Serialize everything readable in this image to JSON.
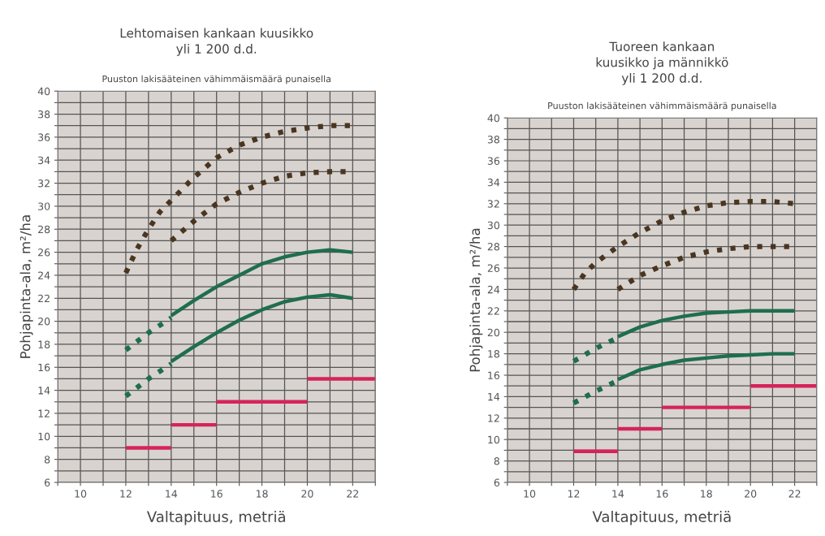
{
  "chart_data": [
    {
      "type": "line",
      "title": "Lehtomaisen kankaan kuusikko\nyli 1 200 d.d.",
      "subtitle": "Puuston lakisääteinen vähimmäismäärä punaisella",
      "xlabel": "Valtapituus, metriä",
      "ylabel": "Pohjapinta-ala, m²/ha",
      "xlim": [
        9,
        23
      ],
      "ylim": [
        6,
        40
      ],
      "xticks": [
        {
          "value": 9,
          "label": null
        },
        10,
        {
          "value": 11,
          "label": null
        },
        12,
        {
          "value": 13,
          "label": null
        },
        14,
        {
          "value": 15,
          "label": null
        },
        16,
        {
          "value": 17,
          "label": null
        },
        18,
        {
          "value": 19,
          "label": null
        },
        20,
        {
          "value": 21,
          "label": null
        },
        22,
        {
          "value": 23,
          "label": null
        }
      ],
      "yticks": [
        6,
        {
          "value": 7,
          "label": null
        },
        8,
        {
          "value": 9,
          "label": null
        },
        10,
        {
          "value": 11,
          "label": null
        },
        12,
        {
          "value": 13,
          "label": null
        },
        14,
        {
          "value": 15,
          "label": null
        },
        16,
        {
          "value": 17,
          "label": null
        },
        18,
        {
          "value": 19,
          "label": null
        },
        20,
        {
          "value": 21,
          "label": null
        },
        22,
        {
          "value": 23,
          "label": null
        },
        24,
        {
          "value": 25,
          "label": null
        },
        26,
        {
          "value": 27,
          "label": null
        },
        28,
        {
          "value": 29,
          "label": null
        },
        30,
        {
          "value": 31,
          "label": null
        },
        32,
        {
          "value": 33,
          "label": null
        },
        34,
        {
          "value": 35,
          "label": null
        },
        36,
        {
          "value": 37,
          "label": null
        },
        38,
        {
          "value": 39,
          "label": null
        },
        40
      ],
      "grid": true,
      "series": [
        {
          "color": "#4a3520",
          "line_style": "dotted",
          "x": [
            12,
            12.5,
            13,
            13.5,
            14,
            15,
            16,
            17,
            18,
            19,
            20,
            21,
            22
          ],
          "values": [
            24.2,
            26.3,
            28,
            29.5,
            30.5,
            32.5,
            34.2,
            35.3,
            36,
            36.5,
            36.8,
            37,
            37
          ]
        },
        {
          "color": "#4a3520",
          "line_style": "dotted",
          "x": [
            14,
            15,
            16,
            17,
            18,
            19,
            20,
            21,
            22
          ],
          "values": [
            27,
            28.7,
            30.2,
            31.2,
            32,
            32.6,
            32.9,
            33,
            33
          ]
        },
        {
          "color": "#1f6e4e",
          "line_style": "dotted",
          "x": [
            12,
            13,
            14
          ],
          "values": [
            17.5,
            19,
            20.3
          ]
        },
        {
          "color": "#1f6e4e",
          "line_style": "solid",
          "x": [
            14,
            15,
            16,
            17,
            18,
            19,
            20,
            21,
            22
          ],
          "values": [
            20.5,
            21.8,
            23,
            24,
            25,
            25.6,
            26,
            26.2,
            26
          ]
        },
        {
          "color": "#1f6e4e",
          "line_style": "dotted",
          "x": [
            12,
            13,
            14
          ],
          "values": [
            13.5,
            15,
            16.3
          ]
        },
        {
          "color": "#1f6e4e",
          "line_style": "solid",
          "x": [
            14,
            15,
            16,
            17,
            18,
            19,
            20,
            21,
            22
          ],
          "values": [
            16.5,
            17.8,
            19,
            20.1,
            21,
            21.7,
            22.1,
            22.3,
            22
          ]
        },
        {
          "color": "#d6245a",
          "line_style": "solid",
          "x": [
            12,
            14
          ],
          "values": [
            9,
            9
          ]
        },
        {
          "color": "#d6245a",
          "line_style": "solid",
          "x": [
            14,
            16
          ],
          "values": [
            11,
            11
          ]
        },
        {
          "color": "#d6245a",
          "line_style": "solid",
          "x": [
            16,
            20
          ],
          "values": [
            13,
            13
          ]
        },
        {
          "color": "#d6245a",
          "line_style": "solid",
          "x": [
            20,
            23
          ],
          "values": [
            15,
            15
          ]
        }
      ]
    },
    {
      "type": "line",
      "title": "Tuoreen kankaan\nkuusikko ja männikkö\nyli 1 200 d.d.",
      "subtitle": "Puuston lakisääteinen vähimmäismäärä punaisella",
      "xlabel": "Valtapituus, metriä",
      "ylabel": "Pohjapinta-ala, m²/ha",
      "xlim": [
        9,
        23
      ],
      "ylim": [
        6,
        40
      ],
      "xticks": [
        {
          "value": 9,
          "label": null
        },
        10,
        {
          "value": 11,
          "label": null
        },
        12,
        {
          "value": 13,
          "label": null
        },
        14,
        {
          "value": 15,
          "label": null
        },
        16,
        {
          "value": 17,
          "label": null
        },
        18,
        {
          "value": 19,
          "label": null
        },
        20,
        {
          "value": 21,
          "label": null
        },
        22,
        {
          "value": 23,
          "label": null
        }
      ],
      "yticks": [
        6,
        {
          "value": 7,
          "label": null
        },
        8,
        {
          "value": 9,
          "label": null
        },
        10,
        {
          "value": 11,
          "label": null
        },
        12,
        {
          "value": 13,
          "label": null
        },
        14,
        {
          "value": 15,
          "label": null
        },
        16,
        {
          "value": 17,
          "label": null
        },
        18,
        {
          "value": 19,
          "label": null
        },
        20,
        {
          "value": 21,
          "label": null
        },
        22,
        {
          "value": 23,
          "label": null
        },
        24,
        {
          "value": 25,
          "label": null
        },
        26,
        {
          "value": 27,
          "label": null
        },
        28,
        {
          "value": 29,
          "label": null
        },
        30,
        {
          "value": 31,
          "label": null
        },
        32,
        {
          "value": 33,
          "label": null
        },
        34,
        {
          "value": 35,
          "label": null
        },
        36,
        {
          "value": 37,
          "label": null
        },
        38,
        {
          "value": 39,
          "label": null
        },
        40
      ],
      "grid": true,
      "series": [
        {
          "color": "#4a3520",
          "line_style": "dotted",
          "x": [
            12,
            12.5,
            13,
            14,
            15,
            16,
            17,
            18,
            19,
            20,
            21,
            22
          ],
          "values": [
            24,
            25.5,
            26.5,
            28,
            29.3,
            30.4,
            31.2,
            31.8,
            32.1,
            32.2,
            32.2,
            32
          ]
        },
        {
          "color": "#4a3520",
          "line_style": "dotted",
          "x": [
            14,
            15,
            16,
            17,
            18,
            19,
            20,
            21,
            22
          ],
          "values": [
            24,
            25.3,
            26.2,
            27,
            27.5,
            27.8,
            28,
            28,
            28
          ]
        },
        {
          "color": "#1f6e4e",
          "line_style": "dotted",
          "x": [
            12,
            13,
            14
          ],
          "values": [
            17.3,
            18.5,
            19.5
          ]
        },
        {
          "color": "#1f6e4e",
          "line_style": "solid",
          "x": [
            14,
            15,
            16,
            17,
            18,
            19,
            20,
            21,
            22
          ],
          "values": [
            19.6,
            20.5,
            21.1,
            21.5,
            21.8,
            21.9,
            22,
            22,
            22
          ]
        },
        {
          "color": "#1f6e4e",
          "line_style": "dotted",
          "x": [
            12,
            13,
            14
          ],
          "values": [
            13.4,
            14.5,
            15.5
          ]
        },
        {
          "color": "#1f6e4e",
          "line_style": "solid",
          "x": [
            14,
            15,
            16,
            17,
            18,
            19,
            20,
            21,
            22
          ],
          "values": [
            15.6,
            16.5,
            17,
            17.4,
            17.6,
            17.8,
            17.9,
            18,
            18
          ]
        },
        {
          "color": "#d6245a",
          "line_style": "solid",
          "x": [
            12,
            14
          ],
          "values": [
            8.9,
            8.9
          ]
        },
        {
          "color": "#d6245a",
          "line_style": "solid",
          "x": [
            14,
            16
          ],
          "values": [
            11,
            11
          ]
        },
        {
          "color": "#d6245a",
          "line_style": "solid",
          "x": [
            16,
            20
          ],
          "values": [
            13,
            13
          ]
        },
        {
          "color": "#d6245a",
          "line_style": "solid",
          "x": [
            20,
            23
          ],
          "values": [
            15,
            15
          ]
        }
      ]
    }
  ]
}
